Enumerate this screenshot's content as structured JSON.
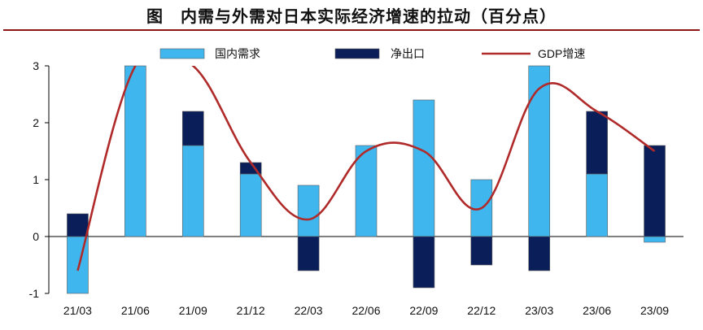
{
  "colors": {
    "domestic": "#3fb7ee",
    "net_export": "#0a1e5a",
    "gdp_line": "#b02a2a",
    "title_rule": "#8e1515"
  },
  "chart_data": {
    "type": "bar",
    "title": "图　内需与外需对日本实际经济增速的拉动（百分点）",
    "categories": [
      "21/03",
      "21/06",
      "21/09",
      "21/12",
      "22/03",
      "22/06",
      "22/09",
      "22/12",
      "23/03",
      "23/06",
      "23/09"
    ],
    "ylim": [
      -1,
      3
    ],
    "yticks": [
      -1,
      0,
      1,
      2,
      3
    ],
    "grid": false,
    "legend_position": "top",
    "series": [
      {
        "name": "国内需求",
        "kind": "bar",
        "values": [
          -1.0,
          3.0,
          1.6,
          1.1,
          0.9,
          1.6,
          2.4,
          1.0,
          3.0,
          1.1,
          -0.1
        ]
      },
      {
        "name": "净出口",
        "kind": "bar",
        "values": [
          0.4,
          0.0,
          0.6,
          0.2,
          -0.6,
          0.0,
          -0.9,
          -0.5,
          -0.6,
          1.1,
          1.6
        ]
      },
      {
        "name": "GDP增速",
        "kind": "line",
        "values": [
          -0.6,
          3.0,
          3.0,
          1.3,
          0.3,
          1.5,
          1.5,
          0.5,
          2.6,
          2.2,
          1.5
        ]
      }
    ]
  }
}
